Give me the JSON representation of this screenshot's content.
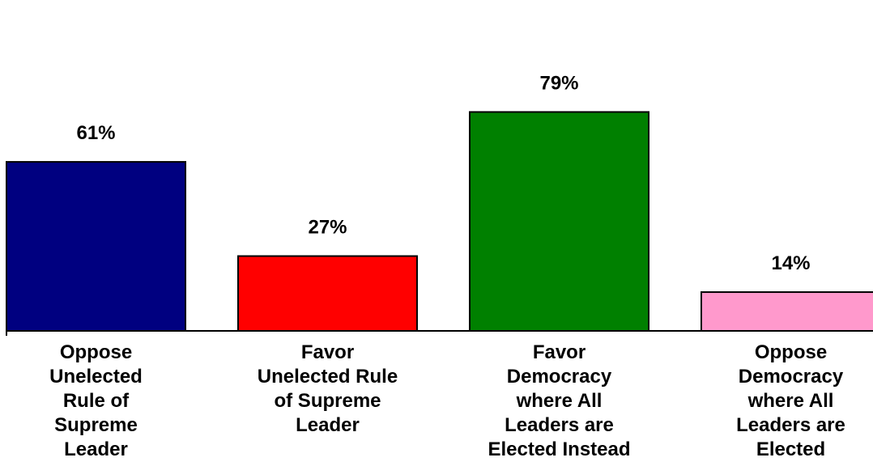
{
  "chart_data": {
    "type": "bar",
    "title": "",
    "xlabel": "",
    "ylabel": "",
    "ylim": [
      0,
      100
    ],
    "grid": false,
    "legend": "none",
    "categories": [
      [
        "Oppose",
        "Unelected",
        "Rule of",
        "Supreme",
        "Leader"
      ],
      [
        "Favor",
        "Unelected Rule",
        "of Supreme",
        "Leader"
      ],
      [
        "Favor",
        "Democracy",
        "where All",
        "Leaders are",
        "Elected Instead"
      ],
      [
        "Oppose",
        "Democracy",
        "where All",
        "Leaders are",
        "Elected"
      ]
    ],
    "values": [
      61,
      27,
      79,
      14
    ],
    "value_labels": [
      "61%",
      "27%",
      "79%",
      "14%"
    ],
    "colors": [
      "#000080",
      "#FF0000",
      "#008000",
      "#FF99CC"
    ]
  }
}
